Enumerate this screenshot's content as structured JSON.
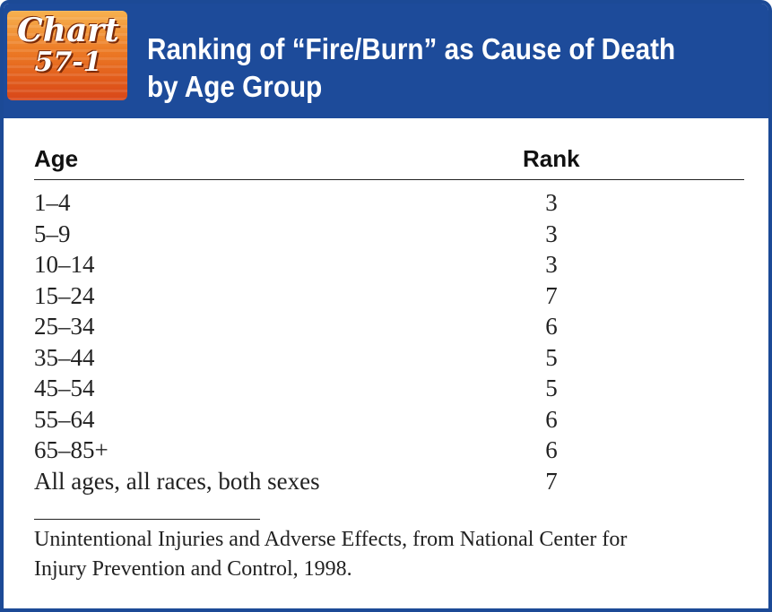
{
  "badge": {
    "word": "Chart",
    "number": "57-1"
  },
  "title": {
    "line1": "Ranking of “Fire/Burn” as Cause of Death",
    "line2": "by Age Group"
  },
  "colors": {
    "header_blue": "#1d4b9a",
    "badge_orange": "#ec7a25"
  },
  "table": {
    "columns": [
      "Age",
      "Rank"
    ],
    "rows": [
      {
        "age": "1–4",
        "rank": "3"
      },
      {
        "age": "5–9",
        "rank": "3"
      },
      {
        "age": "10–14",
        "rank": "3"
      },
      {
        "age": "15–24",
        "rank": "7"
      },
      {
        "age": "25–34",
        "rank": "6"
      },
      {
        "age": "35–44",
        "rank": "5"
      },
      {
        "age": "45–54",
        "rank": "5"
      },
      {
        "age": "55–64",
        "rank": "6"
      },
      {
        "age": "65–85+",
        "rank": "6"
      },
      {
        "age": "All ages, all races, both sexes",
        "rank": "7"
      }
    ]
  },
  "source": {
    "line1": "Unintentional Injuries and Adverse Effects, from National Center for",
    "line2": "Injury Prevention and Control, 1998."
  }
}
